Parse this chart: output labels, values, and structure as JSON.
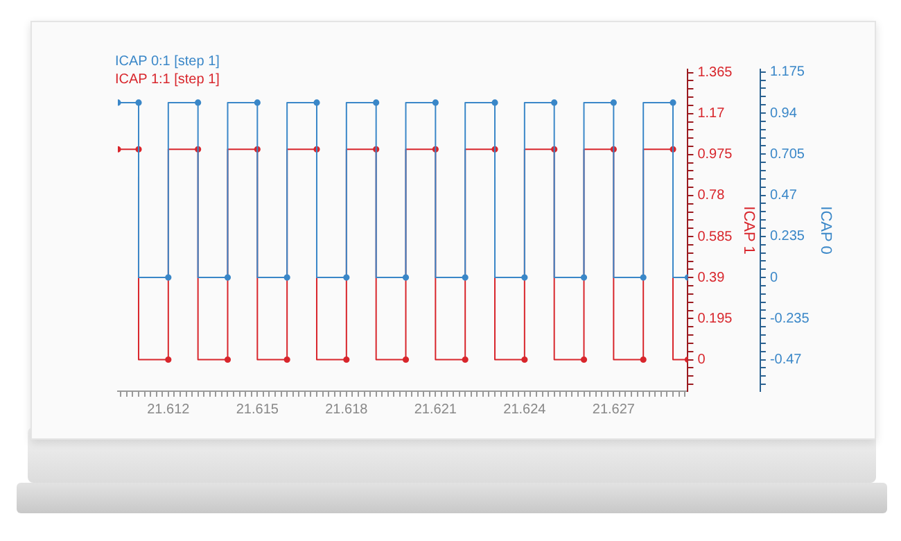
{
  "chart_data": {
    "type": "step",
    "marker": "circle",
    "legend": "top left",
    "ylabel": "ICAP 1",
    "y2label": "ICAP 0",
    "x": [
      21.6103,
      21.611,
      21.612,
      21.613,
      21.614,
      21.615,
      21.616,
      21.617,
      21.618,
      21.619,
      21.62,
      21.621,
      21.622,
      21.623,
      21.624,
      21.625,
      21.626,
      21.627,
      21.628,
      21.629,
      21.6295
    ],
    "series": [
      {
        "name": "ICAP 0:1 [step 1]",
        "color": "#3a87c8",
        "axis": "y2",
        "values": [
          1,
          1,
          0,
          1,
          0,
          1,
          0,
          1,
          0,
          1,
          0,
          1,
          0,
          1,
          0,
          1,
          0,
          1,
          0,
          1,
          0
        ]
      },
      {
        "name": "ICAP 1:1 [step 1]",
        "color": "#d8262c",
        "axis": "y",
        "values": [
          1,
          1,
          0,
          1,
          0,
          1,
          0,
          1,
          0,
          1,
          0,
          1,
          0,
          1,
          0,
          1,
          0,
          1,
          0,
          1,
          0
        ]
      }
    ],
    "xlim": [
      21.6103,
      21.6295
    ],
    "xticks": [
      {
        "value": 21.6104,
        "label": null
      },
      {
        "value": 21.6106,
        "label": null
      },
      {
        "value": 21.6108,
        "label": null
      },
      {
        "value": 21.611,
        "label": null
      },
      {
        "value": 21.6112,
        "label": null
      },
      {
        "value": 21.6114,
        "label": null
      },
      {
        "value": 21.6116,
        "label": null
      },
      {
        "value": 21.6118,
        "label": null
      },
      21.612,
      {
        "value": 21.6122,
        "label": null
      },
      {
        "value": 21.6124,
        "label": null
      },
      {
        "value": 21.6126,
        "label": null
      },
      {
        "value": 21.6128,
        "label": null
      },
      {
        "value": 21.613,
        "label": null
      },
      {
        "value": 21.6132,
        "label": null
      },
      {
        "value": 21.6134,
        "label": null
      },
      {
        "value": 21.6136,
        "label": null
      },
      {
        "value": 21.6138,
        "label": null
      },
      {
        "value": 21.614,
        "label": null
      },
      {
        "value": 21.6142,
        "label": null
      },
      {
        "value": 21.6144,
        "label": null
      },
      {
        "value": 21.6146,
        "label": null
      },
      {
        "value": 21.6148,
        "label": null
      },
      21.615,
      {
        "value": 21.6152,
        "label": null
      },
      {
        "value": 21.6154,
        "label": null
      },
      {
        "value": 21.6156,
        "label": null
      },
      {
        "value": 21.6158,
        "label": null
      },
      {
        "value": 21.616,
        "label": null
      },
      {
        "value": 21.6162,
        "label": null
      },
      {
        "value": 21.6164,
        "label": null
      },
      {
        "value": 21.6166,
        "label": null
      },
      {
        "value": 21.6168,
        "label": null
      },
      {
        "value": 21.617,
        "label": null
      },
      {
        "value": 21.6172,
        "label": null
      },
      {
        "value": 21.6174,
        "label": null
      },
      {
        "value": 21.6176,
        "label": null
      },
      {
        "value": 21.6178,
        "label": null
      },
      21.618,
      {
        "value": 21.6182,
        "label": null
      },
      {
        "value": 21.6184,
        "label": null
      },
      {
        "value": 21.6186,
        "label": null
      },
      {
        "value": 21.6188,
        "label": null
      },
      {
        "value": 21.619,
        "label": null
      },
      {
        "value": 21.6192,
        "label": null
      },
      {
        "value": 21.6194,
        "label": null
      },
      {
        "value": 21.6196,
        "label": null
      },
      {
        "value": 21.6198,
        "label": null
      },
      {
        "value": 21.62,
        "label": null
      },
      {
        "value": 21.6202,
        "label": null
      },
      {
        "value": 21.6204,
        "label": null
      },
      {
        "value": 21.6206,
        "label": null
      },
      {
        "value": 21.6208,
        "label": null
      },
      21.621,
      {
        "value": 21.6212,
        "label": null
      },
      {
        "value": 21.6214,
        "label": null
      },
      {
        "value": 21.6216,
        "label": null
      },
      {
        "value": 21.6218,
        "label": null
      },
      {
        "value": 21.622,
        "label": null
      },
      {
        "value": 21.6222,
        "label": null
      },
      {
        "value": 21.6224,
        "label": null
      },
      {
        "value": 21.6226,
        "label": null
      },
      {
        "value": 21.6228,
        "label": null
      },
      {
        "value": 21.623,
        "label": null
      },
      {
        "value": 21.6232,
        "label": null
      },
      {
        "value": 21.6234,
        "label": null
      },
      {
        "value": 21.6236,
        "label": null
      },
      {
        "value": 21.6238,
        "label": null
      },
      21.624,
      {
        "value": 21.6242,
        "label": null
      },
      {
        "value": 21.6244,
        "label": null
      },
      {
        "value": 21.6246,
        "label": null
      },
      {
        "value": 21.6248,
        "label": null
      },
      {
        "value": 21.625,
        "label": null
      },
      {
        "value": 21.6252,
        "label": null
      },
      {
        "value": 21.6254,
        "label": null
      },
      {
        "value": 21.6256,
        "label": null
      },
      {
        "value": 21.6258,
        "label": null
      },
      {
        "value": 21.626,
        "label": null
      },
      {
        "value": 21.6262,
        "label": null
      },
      {
        "value": 21.6264,
        "label": null
      },
      {
        "value": 21.6266,
        "label": null
      },
      {
        "value": 21.6268,
        "label": null
      },
      21.627,
      {
        "value": 21.6272,
        "label": null
      },
      {
        "value": 21.6274,
        "label": null
      },
      {
        "value": 21.6276,
        "label": null
      },
      {
        "value": 21.6278,
        "label": null
      },
      {
        "value": 21.628,
        "label": null
      },
      {
        "value": 21.6282,
        "label": null
      },
      {
        "value": 21.6284,
        "label": null
      },
      {
        "value": 21.6286,
        "label": null
      },
      {
        "value": 21.6288,
        "label": null
      },
      {
        "value": 21.629,
        "label": null
      },
      {
        "value": 21.6292,
        "label": null
      },
      {
        "value": 21.6294,
        "label": null
      }
    ],
    "ylim": [
      -0.15,
      1.38
    ],
    "yticks": [
      {
        "value": -0.117,
        "label": null
      },
      {
        "value": -0.078,
        "label": null
      },
      {
        "value": -0.039,
        "label": null
      },
      0,
      {
        "value": 0.039,
        "label": null
      },
      {
        "value": 0.078,
        "label": null
      },
      {
        "value": 0.117,
        "label": null
      },
      {
        "value": 0.156,
        "label": null
      },
      0.195,
      {
        "value": 0.234,
        "label": null
      },
      {
        "value": 0.273,
        "label": null
      },
      {
        "value": 0.312,
        "label": null
      },
      {
        "value": 0.351,
        "label": null
      },
      0.39,
      {
        "value": 0.429,
        "label": null
      },
      {
        "value": 0.468,
        "label": null
      },
      {
        "value": 0.507,
        "label": null
      },
      {
        "value": 0.546,
        "label": null
      },
      0.585,
      {
        "value": 0.624,
        "label": null
      },
      {
        "value": 0.663,
        "label": null
      },
      {
        "value": 0.702,
        "label": null
      },
      {
        "value": 0.741,
        "label": null
      },
      0.78,
      {
        "value": 0.819,
        "label": null
      },
      {
        "value": 0.858,
        "label": null
      },
      {
        "value": 0.897,
        "label": null
      },
      {
        "value": 0.936,
        "label": null
      },
      0.975,
      {
        "value": 1.014,
        "label": null
      },
      {
        "value": 1.053,
        "label": null
      },
      {
        "value": 1.092,
        "label": null
      },
      {
        "value": 1.131,
        "label": null
      },
      1.17,
      {
        "value": 1.209,
        "label": null
      },
      {
        "value": 1.248,
        "label": null
      },
      {
        "value": 1.287,
        "label": null
      },
      {
        "value": 1.326,
        "label": null
      },
      1.365
    ],
    "y2lim": [
      -0.65,
      1.19
    ],
    "y2ticks": [
      {
        "value": -0.611,
        "label": null
      },
      {
        "value": -0.564,
        "label": null
      },
      {
        "value": -0.517,
        "label": null
      },
      -0.47,
      {
        "value": -0.423,
        "label": null
      },
      {
        "value": -0.376,
        "label": null
      },
      {
        "value": -0.329,
        "label": null
      },
      {
        "value": -0.282,
        "label": null
      },
      -0.235,
      {
        "value": -0.188,
        "label": null
      },
      {
        "value": -0.141,
        "label": null
      },
      {
        "value": -0.094,
        "label": null
      },
      {
        "value": -0.047,
        "label": null
      },
      0,
      {
        "value": 0.047,
        "label": null
      },
      {
        "value": 0.094,
        "label": null
      },
      {
        "value": 0.141,
        "label": null
      },
      {
        "value": 0.188,
        "label": null
      },
      0.235,
      {
        "value": 0.282,
        "label": null
      },
      {
        "value": 0.329,
        "label": null
      },
      {
        "value": 0.376,
        "label": null
      },
      {
        "value": 0.423,
        "label": null
      },
      0.47,
      {
        "value": 0.517,
        "label": null
      },
      {
        "value": 0.564,
        "label": null
      },
      {
        "value": 0.611,
        "label": null
      },
      {
        "value": 0.658,
        "label": null
      },
      0.705,
      {
        "value": 0.752,
        "label": null
      },
      {
        "value": 0.799,
        "label": null
      },
      {
        "value": 0.846,
        "label": null
      },
      {
        "value": 0.893,
        "label": null
      },
      0.94,
      {
        "value": 0.987,
        "label": null
      },
      {
        "value": 1.034,
        "label": null
      },
      {
        "value": 1.081,
        "label": null
      },
      {
        "value": 1.128,
        "label": null
      },
      1.175
    ]
  }
}
